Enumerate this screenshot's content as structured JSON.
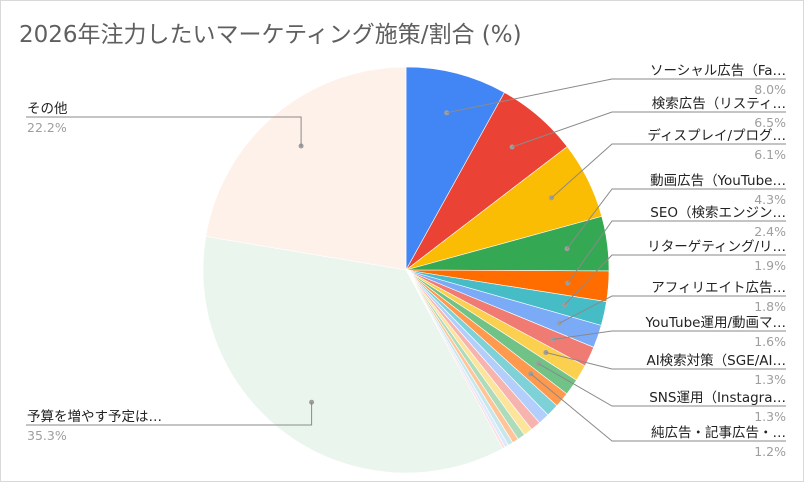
{
  "title": "2026年注力したいマーケティング施策/割合 (%)",
  "chart_data": {
    "type": "pie",
    "title": "2026年注力したいマーケティング施策/割合 (%)",
    "unit": "%",
    "slices": [
      {
        "label": "ソーシャル広告（Fa…",
        "value": 8.0,
        "pct": "8.0%",
        "color": "#4285f4"
      },
      {
        "label": "検索広告（リスティ…",
        "value": 6.5,
        "pct": "6.5%",
        "color": "#ea4335"
      },
      {
        "label": "ディスプレイ/プログ…",
        "value": 6.1,
        "pct": "6.1%",
        "color": "#fbbc04"
      },
      {
        "label": "動画広告（YouTube…",
        "value": 4.3,
        "pct": "4.3%",
        "color": "#34a853"
      },
      {
        "label": "SEO（検索エンジン…",
        "value": 2.4,
        "pct": "2.4%",
        "color": "#ff6d01"
      },
      {
        "label": "リターゲティング/リ…",
        "value": 1.9,
        "pct": "1.9%",
        "color": "#46bdc6"
      },
      {
        "label": "アフィリエイト広告…",
        "value": 1.8,
        "pct": "1.8%",
        "color": "#7baaf7"
      },
      {
        "label": "YouTube運用/動画マ…",
        "value": 1.6,
        "pct": "1.6%",
        "color": "#f07b72"
      },
      {
        "label": "AI検索対策（SGE/AI…",
        "value": 1.3,
        "pct": "1.3%",
        "color": "#fcd04f"
      },
      {
        "label": "SNS運用（Instagra…",
        "value": 1.3,
        "pct": "1.3%",
        "color": "#71c287"
      },
      {
        "label": "純広告・記事広告・…",
        "value": 1.2,
        "pct": "1.2%",
        "color": "#ff994d"
      },
      {
        "label": "",
        "value": 1.0,
        "pct": "",
        "color": "#7ed1d7"
      },
      {
        "label": "",
        "value": 0.9,
        "pct": "",
        "color": "#b3cefb"
      },
      {
        "label": "",
        "value": 0.8,
        "pct": "",
        "color": "#f7b4ae"
      },
      {
        "label": "",
        "value": 0.7,
        "pct": "",
        "color": "#fde49b"
      },
      {
        "label": "",
        "value": 0.6,
        "pct": "",
        "color": "#aedcba"
      },
      {
        "label": "",
        "value": 0.5,
        "pct": "",
        "color": "#ffc599"
      },
      {
        "label": "",
        "value": 0.4,
        "pct": "",
        "color": "#c6e8ea"
      },
      {
        "label": "",
        "value": 0.3,
        "pct": "",
        "color": "#dfe9fd"
      },
      {
        "label": "",
        "value": 0.2,
        "pct": "",
        "color": "#fae0de"
      },
      {
        "label": "予算を増やす予定は…",
        "value": 35.3,
        "pct": "35.3%",
        "color": "#eaf5ee"
      },
      {
        "label": "その他",
        "value": 22.2,
        "pct": "22.2%",
        "color": "#fef1e9"
      }
    ],
    "legend": "none",
    "start_angle": "12 o'clock, clockwise"
  }
}
